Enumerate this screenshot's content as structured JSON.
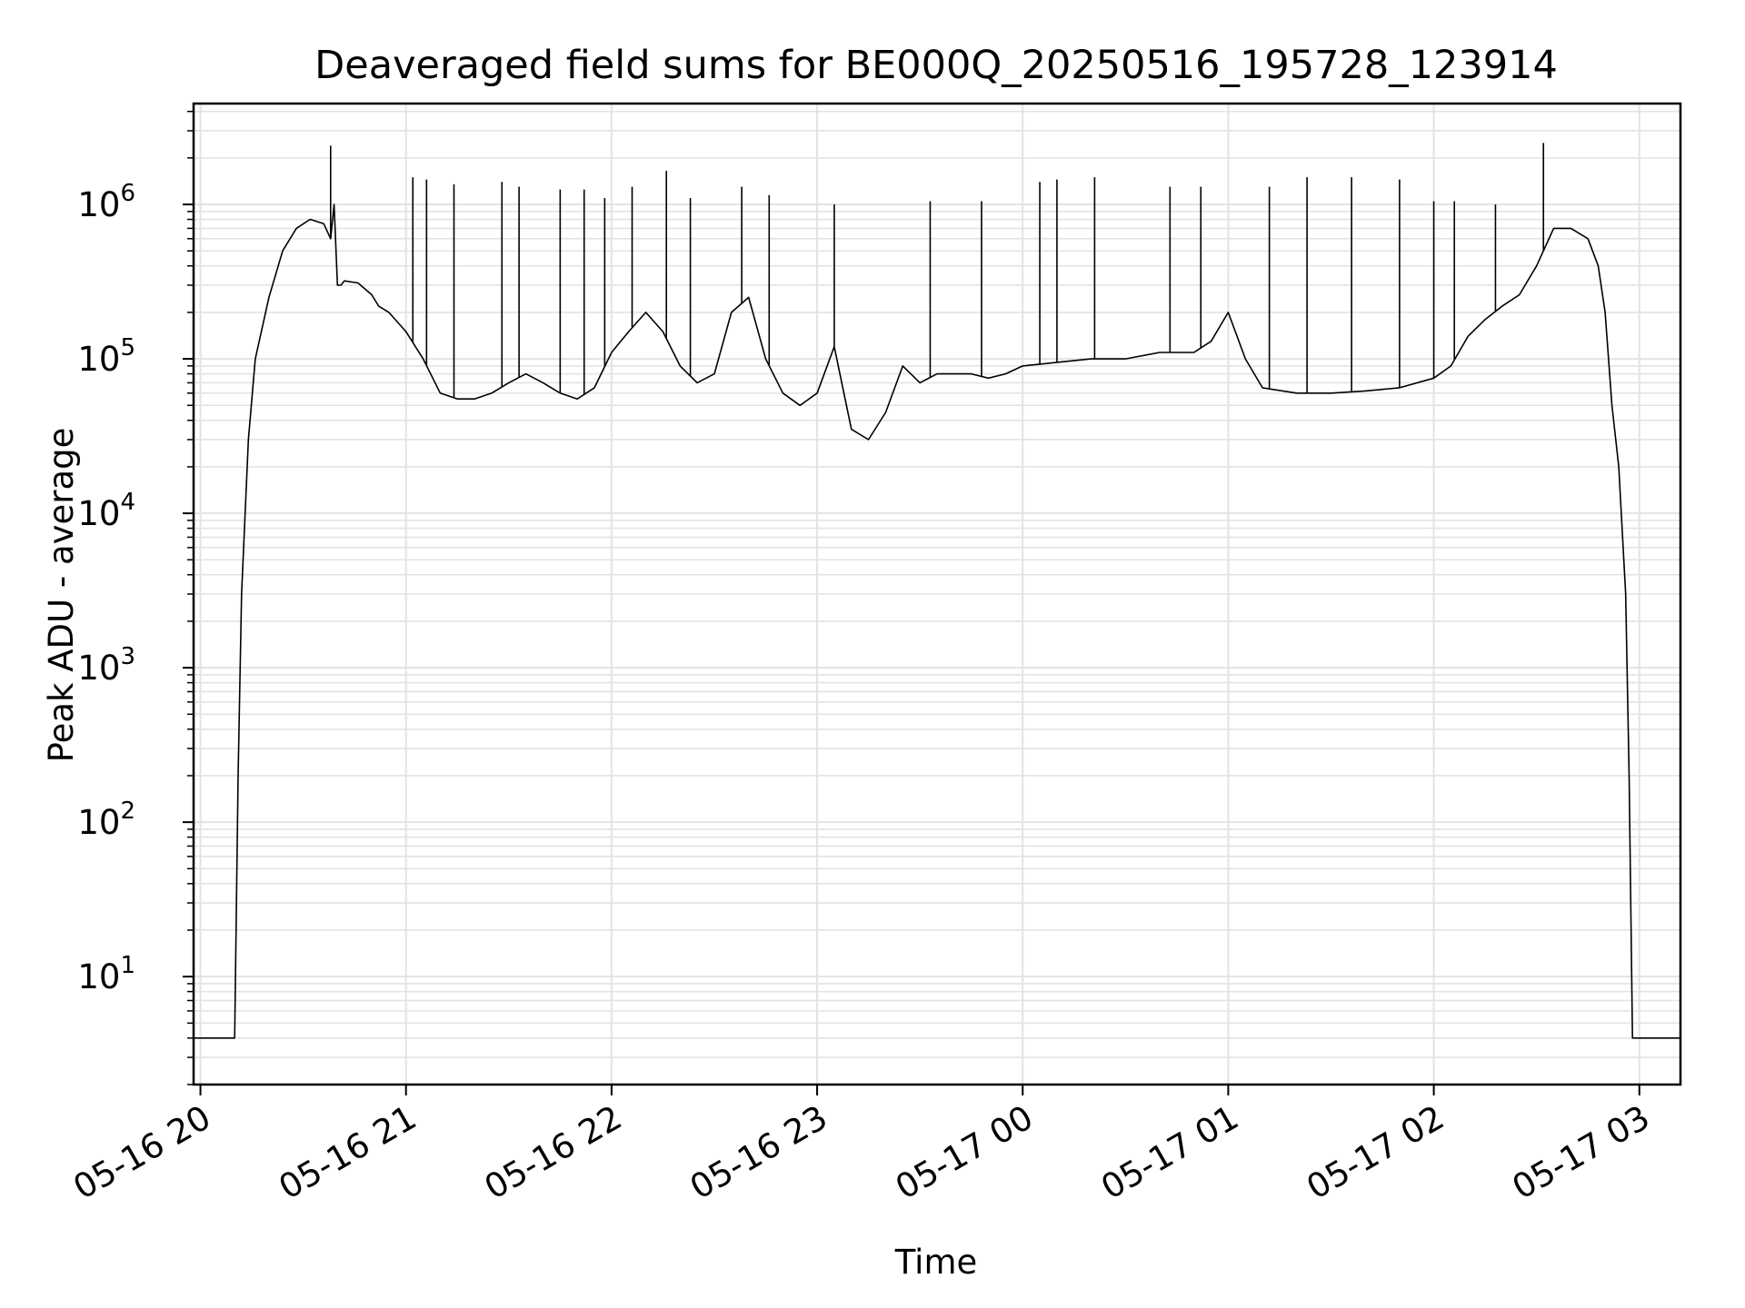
{
  "chart_data": {
    "type": "line",
    "title": "Deaveraged field sums for BE000Q_20250516_195728_123914",
    "xlabel": "Time",
    "ylabel": "Peak ADU - average",
    "yscale": "log",
    "ylim": [
      2,
      4500000
    ],
    "xlim": [
      "05-16 19:58",
      "05-17 03:12"
    ],
    "grid": true,
    "line_color": "#000000",
    "x_ticks": [
      "05-16 20",
      "05-16 21",
      "05-16 22",
      "05-16 23",
      "05-17 00",
      "05-17 01",
      "05-17 02",
      "05-17 03"
    ],
    "y_ticks": [
      {
        "base": "10",
        "exp": "1"
      },
      {
        "base": "10",
        "exp": "2"
      },
      {
        "base": "10",
        "exp": "3"
      },
      {
        "base": "10",
        "exp": "4"
      },
      {
        "base": "10",
        "exp": "5"
      },
      {
        "base": "10",
        "exp": "6"
      }
    ],
    "series": [
      {
        "x": [
          "05-16 19:58",
          "05-16 20:10",
          "05-16 20:11",
          "05-16 20:12",
          "05-16 20:14",
          "05-16 20:16",
          "05-16 20:20",
          "05-16 20:24",
          "05-16 20:28",
          "05-16 20:32",
          "05-16 20:36",
          "05-16 20:38",
          "05-16 20:39",
          "05-16 20:40",
          "05-16 20:41",
          "05-16 20:42",
          "05-16 20:46",
          "05-16 20:50",
          "05-16 20:52",
          "05-16 20:55",
          "05-16 21:00",
          "05-16 21:05",
          "05-16 21:10",
          "05-16 21:15",
          "05-16 21:20",
          "05-16 21:25",
          "05-16 21:30",
          "05-16 21:35",
          "05-16 21:40",
          "05-16 21:45",
          "05-16 21:50",
          "05-16 21:55",
          "05-16 22:00",
          "05-16 22:05",
          "05-16 22:10",
          "05-16 22:15",
          "05-16 22:20",
          "05-16 22:25",
          "05-16 22:30",
          "05-16 22:35",
          "05-16 22:40",
          "05-16 22:45",
          "05-16 22:50",
          "05-16 22:55",
          "05-16 23:00",
          "05-16 23:05",
          "05-16 23:10",
          "05-16 23:15",
          "05-16 23:20",
          "05-16 23:25",
          "05-16 23:30",
          "05-16 23:35",
          "05-16 23:40",
          "05-16 23:45",
          "05-16 23:50",
          "05-16 23:55",
          "05-17 00:00",
          "05-17 00:10",
          "05-17 00:20",
          "05-17 00:30",
          "05-17 00:40",
          "05-17 00:50",
          "05-17 00:55",
          "05-17 01:00",
          "05-17 01:05",
          "05-17 01:10",
          "05-17 01:20",
          "05-17 01:30",
          "05-17 01:40",
          "05-17 01:50",
          "05-17 02:00",
          "05-17 02:05",
          "05-17 02:10",
          "05-17 02:15",
          "05-17 02:20",
          "05-17 02:25",
          "05-17 02:30",
          "05-17 02:32",
          "05-17 02:35",
          "05-17 02:40",
          "05-17 02:45",
          "05-17 02:48",
          "05-17 02:50",
          "05-17 02:52",
          "05-17 02:54",
          "05-17 02:56",
          "05-17 02:57",
          "05-17 02:58",
          "05-17 03:12"
        ],
        "y": [
          4,
          4,
          200,
          3000,
          30000,
          100000,
          250000,
          500000,
          700000,
          800000,
          750000,
          600000,
          1000000,
          300000,
          300000,
          320000,
          310000,
          260000,
          220000,
          200000,
          150000,
          100000,
          60000,
          55000,
          55000,
          60000,
          70000,
          80000,
          70000,
          60000,
          55000,
          65000,
          110000,
          150000,
          200000,
          150000,
          90000,
          70000,
          80000,
          200000,
          250000,
          100000,
          60000,
          50000,
          60000,
          120000,
          35000,
          30000,
          45000,
          90000,
          70000,
          80000,
          80000,
          80000,
          75000,
          80000,
          90000,
          95000,
          100000,
          100000,
          110000,
          110000,
          130000,
          200000,
          100000,
          65000,
          60000,
          60000,
          62000,
          65000,
          75000,
          90000,
          140000,
          180000,
          220000,
          260000,
          400000,
          500000,
          700000,
          700000,
          600000,
          400000,
          200000,
          50000,
          20000,
          3000,
          200,
          4,
          4
        ]
      }
    ],
    "spikes": [
      {
        "x": "05-16 20:38",
        "y": 2400000
      },
      {
        "x": "05-16 21:02",
        "y": 1500000
      },
      {
        "x": "05-16 21:06",
        "y": 1450000
      },
      {
        "x": "05-16 21:14",
        "y": 1350000
      },
      {
        "x": "05-16 21:28",
        "y": 1400000
      },
      {
        "x": "05-16 21:33",
        "y": 1300000
      },
      {
        "x": "05-16 21:45",
        "y": 1250000
      },
      {
        "x": "05-16 21:52",
        "y": 1250000
      },
      {
        "x": "05-16 21:58",
        "y": 1100000
      },
      {
        "x": "05-16 22:06",
        "y": 1300000
      },
      {
        "x": "05-16 22:16",
        "y": 1650000
      },
      {
        "x": "05-16 22:23",
        "y": 1100000
      },
      {
        "x": "05-16 22:38",
        "y": 1300000
      },
      {
        "x": "05-16 22:46",
        "y": 1150000
      },
      {
        "x": "05-16 23:05",
        "y": 1000000
      },
      {
        "x": "05-16 23:33",
        "y": 1050000
      },
      {
        "x": "05-16 23:48",
        "y": 1050000
      },
      {
        "x": "05-17 00:05",
        "y": 1400000
      },
      {
        "x": "05-17 00:10",
        "y": 1450000
      },
      {
        "x": "05-17 00:21",
        "y": 1500000
      },
      {
        "x": "05-17 00:43",
        "y": 1300000
      },
      {
        "x": "05-17 00:52",
        "y": 1300000
      },
      {
        "x": "05-17 01:12",
        "y": 1300000
      },
      {
        "x": "05-17 01:23",
        "y": 1500000
      },
      {
        "x": "05-17 01:36",
        "y": 1500000
      },
      {
        "x": "05-17 01:50",
        "y": 1450000
      },
      {
        "x": "05-17 02:00",
        "y": 1050000
      },
      {
        "x": "05-17 02:06",
        "y": 1050000
      },
      {
        "x": "05-17 02:18",
        "y": 1000000
      },
      {
        "x": "05-17 02:32",
        "y": 2500000
      }
    ]
  }
}
